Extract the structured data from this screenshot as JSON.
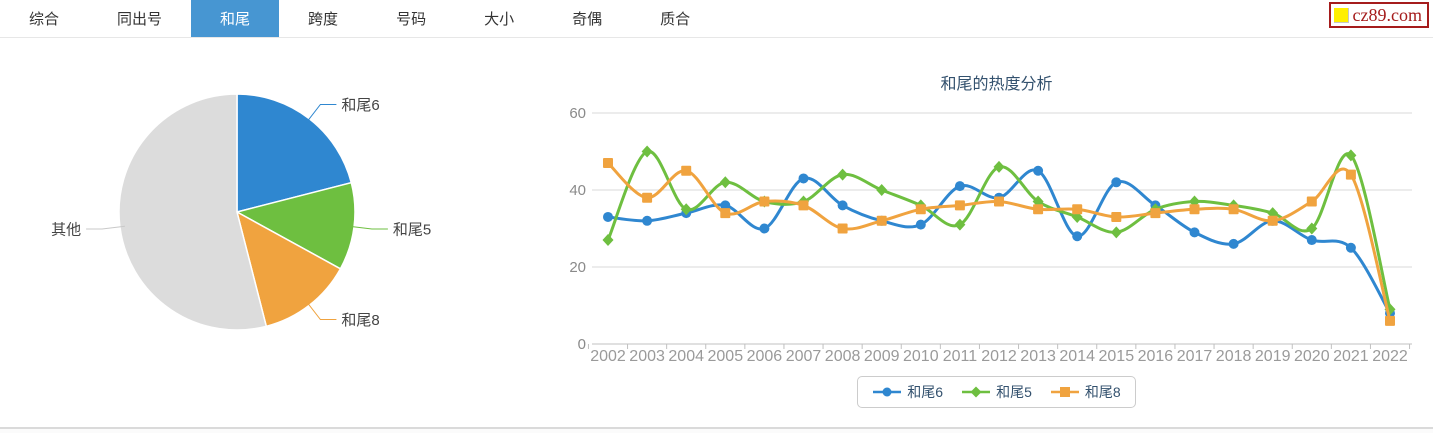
{
  "nav": {
    "tabs": [
      {
        "label": "综合",
        "active": false
      },
      {
        "label": "同出号",
        "active": false
      },
      {
        "label": "和尾",
        "active": true
      },
      {
        "label": "跨度",
        "active": false
      },
      {
        "label": "号码",
        "active": false
      },
      {
        "label": "大小",
        "active": false
      },
      {
        "label": "奇偶",
        "active": false
      },
      {
        "label": "质合",
        "active": false
      }
    ],
    "active_bg": "#4796d2"
  },
  "logo": {
    "text": "cz89.com",
    "text_color": "#a51c1c",
    "square_color": "#ffef00"
  },
  "pie": {
    "slices": [
      {
        "label": "和尾6",
        "percent": 21,
        "color": "#2f87d0"
      },
      {
        "label": "和尾5",
        "percent": 12,
        "color": "#6ebf40"
      },
      {
        "label": "和尾8",
        "percent": 13,
        "color": "#f0a33f"
      },
      {
        "label": "其他",
        "percent": 54,
        "color": "#dcdcdc"
      }
    ]
  },
  "chart_data": {
    "type": "line",
    "title": "和尾的热度分析",
    "x": [
      2002,
      2003,
      2004,
      2005,
      2006,
      2007,
      2008,
      2009,
      2010,
      2011,
      2012,
      2013,
      2014,
      2015,
      2016,
      2017,
      2018,
      2019,
      2020,
      2021,
      2022
    ],
    "series": [
      {
        "name": "和尾6",
        "marker": "circle",
        "color": "#2f87d0",
        "values": [
          33,
          32,
          34,
          36,
          30,
          43,
          36,
          32,
          31,
          41,
          38,
          45,
          28,
          42,
          36,
          29,
          26,
          32,
          27,
          25,
          8
        ]
      },
      {
        "name": "和尾5",
        "marker": "diamond",
        "color": "#6ebf40",
        "values": [
          27,
          50,
          35,
          42,
          37,
          37,
          44,
          40,
          36,
          31,
          46,
          37,
          33,
          29,
          35,
          37,
          36,
          34,
          30,
          49,
          9
        ]
      },
      {
        "name": "和尾8",
        "marker": "square",
        "color": "#f0a33f",
        "values": [
          47,
          38,
          45,
          34,
          37,
          36,
          30,
          32,
          35,
          36,
          37,
          35,
          35,
          33,
          34,
          35,
          35,
          32,
          37,
          44,
          6
        ]
      }
    ],
    "ylim": [
      0,
      60
    ],
    "yticks": [
      0,
      20,
      40,
      60
    ],
    "grid": true,
    "legend_position": "bottom"
  }
}
